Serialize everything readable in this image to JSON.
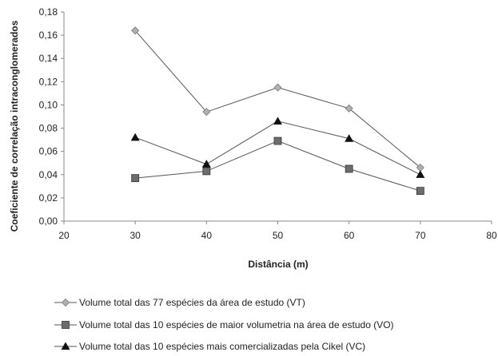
{
  "chart_data": {
    "type": "line",
    "title": "",
    "xlabel": "Distância (m)",
    "ylabel": "Coeficiente de correlação intraconglomerados",
    "xlim": [
      20,
      80
    ],
    "ylim": [
      0,
      0.18
    ],
    "x_ticks": [
      20,
      30,
      40,
      50,
      60,
      70,
      80
    ],
    "x_tick_labels": [
      "20",
      "30",
      "40",
      "50",
      "60",
      "70",
      "80"
    ],
    "y_ticks": [
      0,
      0.02,
      0.04,
      0.06,
      0.08,
      0.1,
      0.12,
      0.14,
      0.16,
      0.18
    ],
    "y_tick_labels": [
      "0,00",
      "0,02",
      "0,04",
      "0,06",
      "0,08",
      "0,10",
      "0,12",
      "0,14",
      "0,16",
      "0,18"
    ],
    "grid": false,
    "legend_position": "bottom",
    "x": [
      30,
      40,
      50,
      60,
      70
    ],
    "series": [
      {
        "name": "Volume total das 77 espécies da área de estudo (VT)",
        "marker": "diamond",
        "color": "#b0b0b0",
        "values": [
          0.164,
          0.094,
          0.115,
          0.097,
          0.046
        ]
      },
      {
        "name": "Volume total das 10 espécies de maior volumetria na área de estudo (VO)",
        "marker": "square",
        "color": "#6d6d6d",
        "values": [
          0.037,
          0.043,
          0.069,
          0.045,
          0.026
        ]
      },
      {
        "name": "Volume total das 10 espécies mais comercializadas pela Cikel (VC)",
        "marker": "triangle",
        "color": "#111111",
        "values": [
          0.072,
          0.049,
          0.086,
          0.071,
          0.04
        ]
      }
    ]
  }
}
